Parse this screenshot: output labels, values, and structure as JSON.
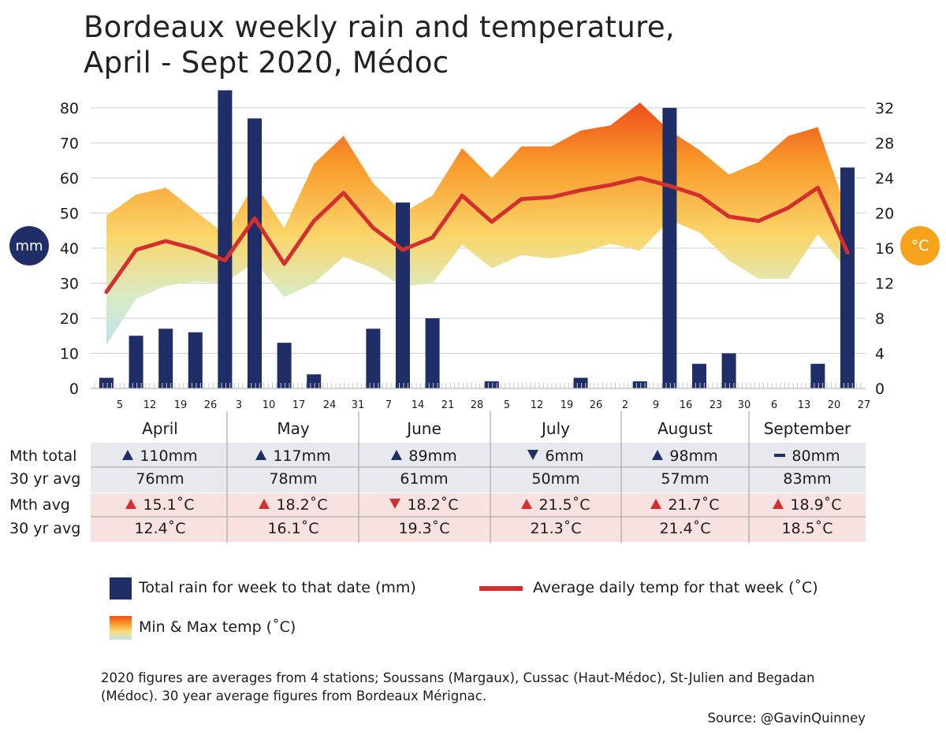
{
  "title_line1": "Bordeaux weekly rain and temperature,",
  "title_line2": "April - Sept 2020, Médoc",
  "badges": {
    "left": "mm",
    "right": "°C"
  },
  "colors": {
    "rain": "#1f2e66",
    "avg_temp": "#d42f2f",
    "up": "#d42f2f",
    "down": "#1f2e66",
    "band_hot": "#f05a1e",
    "band_cool": "#bfe3ea"
  },
  "chart_data": {
    "type": "bar",
    "x_ticks": [
      "5",
      "12",
      "19",
      "26",
      "3",
      "10",
      "17",
      "24",
      "31",
      "7",
      "14",
      "21",
      "28",
      "5",
      "12",
      "19",
      "26",
      "2",
      "9",
      "16",
      "23",
      "30",
      "6",
      "13",
      "20",
      "27"
    ],
    "rain_week_positions": [
      0,
      1,
      2,
      3,
      4,
      5,
      6,
      7,
      9,
      10,
      11,
      13,
      16,
      18,
      19,
      20,
      21,
      24,
      25
    ],
    "series": [
      {
        "name": "Total rain for week to that date (mm)",
        "type": "bar",
        "x": [
          0,
          1,
          2,
          3,
          4,
          5,
          6,
          7,
          9,
          10,
          11,
          13,
          16,
          18,
          19,
          20,
          21,
          24,
          25
        ],
        "values": [
          3,
          15,
          17,
          16,
          85,
          77,
          13,
          4,
          17,
          53,
          20,
          2,
          3,
          2,
          80,
          7,
          10,
          7,
          63
        ]
      },
      {
        "name": "Average daily temp for that week (˚C)",
        "type": "line",
        "values": [
          11,
          15.8,
          16.8,
          15.9,
          14.6,
          19.4,
          14.2,
          19.1,
          22.3,
          18.3,
          15.8,
          17.2,
          22.0,
          19.0,
          21.6,
          21.8,
          22.6,
          23.2,
          24.0,
          23.1,
          22.0,
          19.6,
          19.1,
          20.6,
          22.9,
          15.5
        ]
      },
      {
        "name": "Min & Max temp (˚C)",
        "type": "area",
        "min": [
          5,
          10.2,
          11.7,
          12.2,
          12.0,
          14.4,
          10.4,
          12.0,
          15.0,
          13.7,
          11.6,
          12.0,
          16.4,
          13.7,
          15.2,
          14.8,
          15.4,
          16.5,
          15.7,
          19.2,
          17.8,
          14.6,
          12.5,
          12.5,
          17.6,
          13.4
        ],
        "max": [
          19.7,
          22.1,
          22.9,
          20.2,
          17.6,
          23.4,
          18.3,
          25.6,
          28.8,
          23.4,
          20.0,
          22.0,
          27.4,
          24.0,
          27.6,
          27.6,
          29.4,
          30.0,
          32.6,
          29.4,
          27.2,
          24.4,
          25.8,
          28.8,
          29.8,
          20.0
        ]
      }
    ],
    "y_left": {
      "ticks": [
        "0",
        "10",
        "20",
        "30",
        "40",
        "50",
        "60",
        "70",
        "80"
      ],
      "range": [
        0,
        82
      ]
    },
    "y_right": {
      "ticks": [
        "0",
        "4",
        "8",
        "12",
        "16",
        "20",
        "24",
        "28",
        "32"
      ],
      "range": [
        0,
        32.8
      ]
    }
  },
  "table": {
    "months": [
      "April",
      "May",
      "June",
      "July",
      "August",
      "September"
    ],
    "row_labels": {
      "mth_total": "Mth total",
      "avg_rain": "30 yr avg",
      "mth_avg": "Mth avg",
      "avg_temp": "30 yr avg"
    },
    "mth_total": [
      "110mm",
      "117mm",
      "89mm",
      "6mm",
      "98mm",
      "80mm"
    ],
    "mth_total_trend": [
      "up",
      "up",
      "up",
      "down",
      "up",
      "flat"
    ],
    "avg_rain": [
      "76mm",
      "78mm",
      "61mm",
      "50mm",
      "57mm",
      "83mm"
    ],
    "mth_avg": [
      "15.1˚C",
      "18.2˚C",
      "18.2˚C",
      "21.5˚C",
      "21.7˚C",
      "18.9˚C"
    ],
    "mth_avg_trend": [
      "up",
      "up",
      "down",
      "up",
      "up",
      "up"
    ],
    "avg_temp": [
      "12.4˚C",
      "16.1˚C",
      "19.3˚C",
      "21.3˚C",
      "21.4˚C",
      "18.5˚C"
    ]
  },
  "legend": {
    "rain": "Total rain for week to that date (mm)",
    "line": "Average daily temp for that week (˚C)",
    "band": "Min & Max temp (˚C)"
  },
  "note": "2020 figures are averages from 4 stations; Soussans (Margaux), Cussac (Haut-Médoc), St-Julien and Begadan (Médoc). 30 year average figures from Bordeaux Mérignac.",
  "source": "Source: @GavinQuinney"
}
